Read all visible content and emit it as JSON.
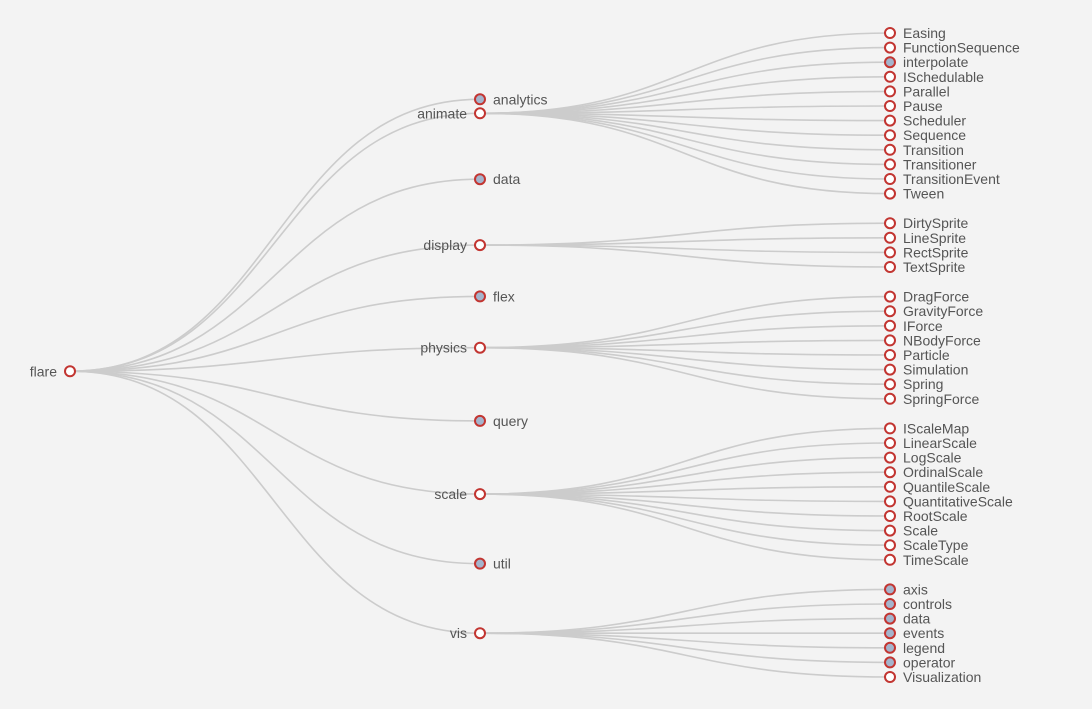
{
  "colors": {
    "background": "#f3f3f3",
    "link": "#cccccc",
    "node_stroke": "#c23531",
    "collapsed_fill": "#a4b4cc",
    "expanded_fill": "#ffffff",
    "label": "#555555"
  },
  "tree": {
    "name": "flare",
    "children": [
      {
        "name": "analytics",
        "collapsed": true
      },
      {
        "name": "animate",
        "children": [
          {
            "name": "Easing"
          },
          {
            "name": "FunctionSequence"
          },
          {
            "name": "interpolate",
            "collapsed": true
          },
          {
            "name": "ISchedulable"
          },
          {
            "name": "Parallel"
          },
          {
            "name": "Pause"
          },
          {
            "name": "Scheduler"
          },
          {
            "name": "Sequence"
          },
          {
            "name": "Transition"
          },
          {
            "name": "Transitioner"
          },
          {
            "name": "TransitionEvent"
          },
          {
            "name": "Tween"
          }
        ]
      },
      {
        "name": "data",
        "collapsed": true
      },
      {
        "name": "display",
        "children": [
          {
            "name": "DirtySprite"
          },
          {
            "name": "LineSprite"
          },
          {
            "name": "RectSprite"
          },
          {
            "name": "TextSprite"
          }
        ]
      },
      {
        "name": "flex",
        "collapsed": true
      },
      {
        "name": "physics",
        "children": [
          {
            "name": "DragForce"
          },
          {
            "name": "GravityForce"
          },
          {
            "name": "IForce"
          },
          {
            "name": "NBodyForce"
          },
          {
            "name": "Particle"
          },
          {
            "name": "Simulation"
          },
          {
            "name": "Spring"
          },
          {
            "name": "SpringForce"
          }
        ]
      },
      {
        "name": "query",
        "collapsed": true
      },
      {
        "name": "scale",
        "children": [
          {
            "name": "IScaleMap"
          },
          {
            "name": "LinearScale"
          },
          {
            "name": "LogScale"
          },
          {
            "name": "OrdinalScale"
          },
          {
            "name": "QuantileScale"
          },
          {
            "name": "QuantitativeScale"
          },
          {
            "name": "RootScale"
          },
          {
            "name": "Scale"
          },
          {
            "name": "ScaleType"
          },
          {
            "name": "TimeScale"
          }
        ]
      },
      {
        "name": "util",
        "collapsed": true
      },
      {
        "name": "vis",
        "children": [
          {
            "name": "axis",
            "collapsed": true
          },
          {
            "name": "controls",
            "collapsed": true
          },
          {
            "name": "data",
            "collapsed": true
          },
          {
            "name": "events",
            "collapsed": true
          },
          {
            "name": "legend",
            "collapsed": true
          },
          {
            "name": "operator",
            "collapsed": true
          },
          {
            "name": "Visualization"
          }
        ]
      }
    ]
  }
}
